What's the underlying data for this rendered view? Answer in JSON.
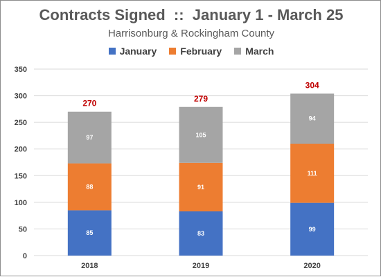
{
  "chart_data": {
    "type": "bar",
    "stacked": true,
    "title": "Contracts Signed  ::  January 1 - March 25",
    "subtitle": "Harrisonburg & Rockingham County",
    "categories": [
      "2018",
      "2019",
      "2020"
    ],
    "series": [
      {
        "name": "January",
        "values": [
          85,
          83,
          99
        ],
        "color": "#4472c4"
      },
      {
        "name": "February",
        "values": [
          88,
          91,
          111
        ],
        "color": "#ed7d31"
      },
      {
        "name": "March",
        "values": [
          97,
          105,
          94
        ],
        "color": "#a5a5a5"
      }
    ],
    "totals": [
      270,
      279,
      304
    ],
    "total_color": "#c00000",
    "ylim": [
      0,
      350
    ],
    "yticks": [
      0,
      50,
      100,
      150,
      200,
      250,
      300,
      350
    ],
    "grid": true,
    "legend": "top"
  }
}
